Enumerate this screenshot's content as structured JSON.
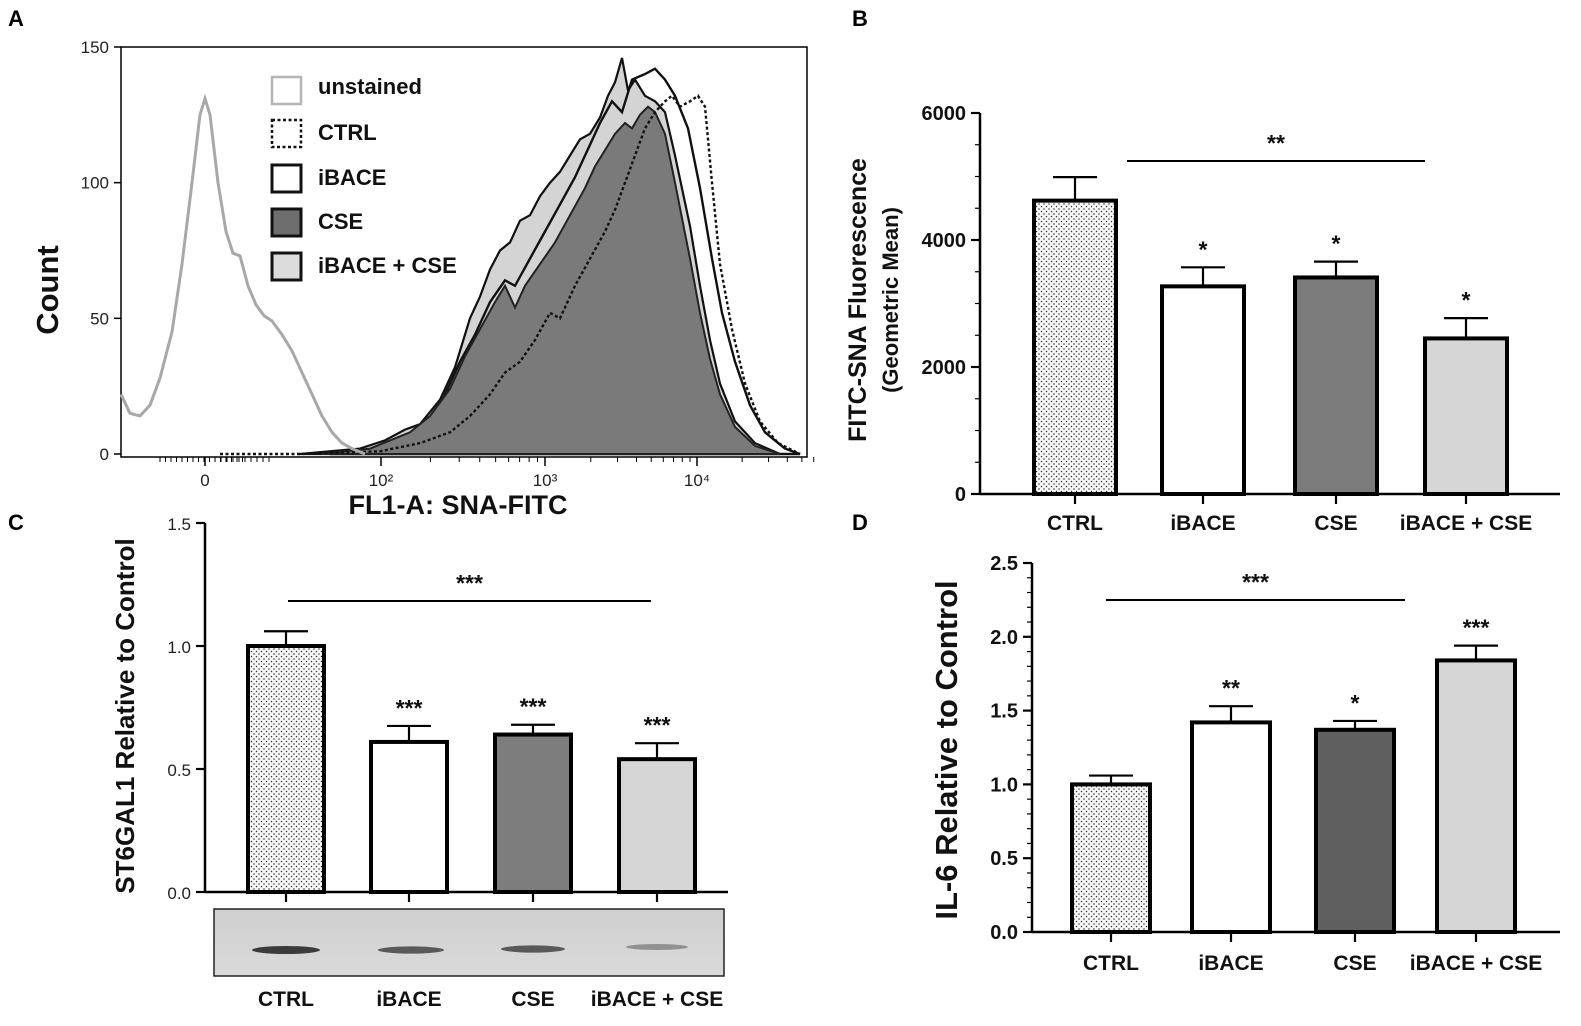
{
  "chart_data": [
    {
      "panel": "A",
      "type": "histogram",
      "xlabel": "FL1-A: SNA-FITC",
      "ylabel": "Count",
      "ylim": [
        0,
        150
      ],
      "yticks": [
        "0",
        "50",
        "100",
        "150"
      ],
      "xticks": [
        "0",
        "10²",
        "10³",
        "10⁴"
      ],
      "legend": [
        "unstained",
        "CTRL",
        "iBACE",
        "CSE",
        "iBACE + CSE"
      ],
      "series": [
        {
          "name": "unstained",
          "peak_x": "0",
          "peak_count": 131
        },
        {
          "name": "CTRL",
          "peak_count": 133
        },
        {
          "name": "iBACE",
          "peak_count": 142
        },
        {
          "name": "CSE",
          "peak_count": 128
        },
        {
          "name": "iBACE + CSE",
          "peak_count": 146
        }
      ]
    },
    {
      "panel": "B",
      "type": "bar",
      "ylabel": [
        "FITC-SNA Fluorescence",
        "(Geometric Mean)"
      ],
      "ylim": [
        0,
        6000
      ],
      "yticks": [
        "0",
        "2000",
        "4000",
        "6000"
      ],
      "categories": [
        "CTRL",
        "iBACE",
        "CSE",
        "iBACE + CSE"
      ],
      "values": [
        4620,
        3270,
        3410,
        2450
      ],
      "errors": [
        370,
        300,
        250,
        320
      ],
      "significance": [
        "",
        "*",
        "*",
        "*"
      ],
      "bracket": "**"
    },
    {
      "panel": "C",
      "type": "bar",
      "ylabel": "ST6GAL1 Relative to Control",
      "ylim": [
        0,
        1.5
      ],
      "yticks": [
        "0.0",
        "0.5",
        "1.0",
        "1.5"
      ],
      "categories": [
        "CTRL",
        "iBACE",
        "CSE",
        "iBACE + CSE"
      ],
      "values": [
        1.0,
        0.61,
        0.64,
        0.54
      ],
      "errors": [
        0.06,
        0.065,
        0.04,
        0.065
      ],
      "significance": [
        "",
        "***",
        "***",
        "***"
      ],
      "bracket": "***"
    },
    {
      "panel": "D",
      "type": "bar",
      "ylabel": "IL-6 Relative to Control",
      "ylim": [
        0,
        2.5
      ],
      "yticks": [
        "0.0",
        "0.5",
        "1.0",
        "1.5",
        "2.0",
        "2.5"
      ],
      "categories": [
        "CTRL",
        "iBACE",
        "CSE",
        "iBACE + CSE"
      ],
      "values": [
        1.0,
        1.42,
        1.37,
        1.84
      ],
      "errors": [
        0.06,
        0.11,
        0.06,
        0.1
      ],
      "significance": [
        "",
        "**",
        "*",
        "***"
      ],
      "bracket": "***"
    }
  ],
  "colors": {
    "ctrl": "#f7f7f7",
    "ibace": "#ffffff",
    "cse_b": "#7b7b7b",
    "cse_c": "#7d7d7d",
    "cse_d": "#5f5f5f",
    "ibace_cse": "#d6d6d6",
    "unstained": "#a8a8a8",
    "hist_fill": "#7a7a7a"
  }
}
